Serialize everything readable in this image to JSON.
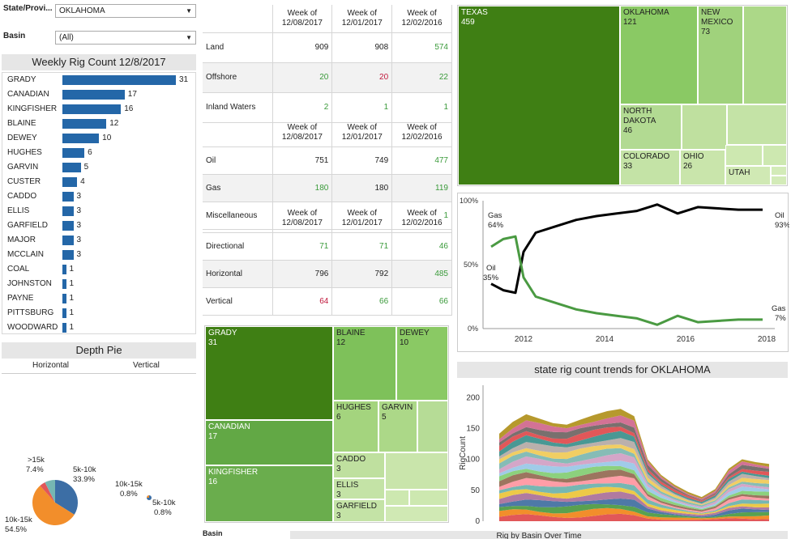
{
  "filters": {
    "state_label": "State/Provi...",
    "state_value": "OKLAHOMA",
    "basin_label": "Basin",
    "basin_value": "(All)"
  },
  "weekly": {
    "title": "Weekly Rig Count 12/8/2017",
    "items": [
      {
        "name": "GRADY",
        "value": 31
      },
      {
        "name": "CANADIAN",
        "value": 17
      },
      {
        "name": "KINGFISHER",
        "value": 16
      },
      {
        "name": "BLAINE",
        "value": 12
      },
      {
        "name": "DEWEY",
        "value": 10
      },
      {
        "name": "HUGHES",
        "value": 6
      },
      {
        "name": "GARVIN",
        "value": 5
      },
      {
        "name": "CUSTER",
        "value": 4
      },
      {
        "name": "CADDO",
        "value": 3
      },
      {
        "name": "ELLIS",
        "value": 3
      },
      {
        "name": "GARFIELD",
        "value": 3
      },
      {
        "name": "MAJOR",
        "value": 3
      },
      {
        "name": "MCCLAIN",
        "value": 3
      },
      {
        "name": "COAL",
        "value": 1
      },
      {
        "name": "JOHNSTON",
        "value": 1
      },
      {
        "name": "PAYNE",
        "value": 1
      },
      {
        "name": "PITTSBURG",
        "value": 1
      },
      {
        "name": "WOODWARD",
        "value": 1
      }
    ],
    "bar_color": "#2467a8"
  },
  "depth": {
    "title": "Depth Pie",
    "col1": "Horizontal",
    "col2": "Vertical",
    "pie1": [
      {
        "label": "5k-10k",
        "pct": "33.9%",
        "value": 33.9,
        "color": "#3c6ea5"
      },
      {
        "label": "10k-15k",
        "pct": "54.5%",
        "value": 54.5,
        "color": "#f28e2b"
      },
      {
        "label": "",
        "pct": "",
        "value": 4.2,
        "color": "#e15759"
      },
      {
        "label": ">15k",
        "pct": "7.4%",
        "value": 7.4,
        "color": "#76b7b2"
      }
    ],
    "pie2": [
      {
        "label": "10k-15k",
        "pct": "0.8%",
        "color": "#f28e2b"
      },
      {
        "label": "5k-10k",
        "pct": "0.8%",
        "color": "#3c6ea5"
      }
    ]
  },
  "tables": {
    "headers": [
      "Week of\n12/08/2017",
      "Week of\n12/01/2017",
      "Week of\n12/02/2016"
    ],
    "location": [
      {
        "name": "Land",
        "v": [
          "909",
          "908",
          "574"
        ],
        "c": [
          "dark",
          "dark",
          "green1"
        ]
      },
      {
        "name": "Offshore",
        "v": [
          "20",
          "20",
          "22"
        ],
        "c": [
          "green1",
          "red1",
          "green1"
        ]
      },
      {
        "name": "Inland Waters",
        "v": [
          "2",
          "1",
          "1"
        ],
        "c": [
          "green1",
          "green1",
          "green1"
        ]
      }
    ],
    "type": [
      {
        "name": "Oil",
        "v": [
          "751",
          "749",
          "477"
        ],
        "c": [
          "dark",
          "dark",
          "green1"
        ]
      },
      {
        "name": "Gas",
        "v": [
          "180",
          "180",
          "119"
        ],
        "c": [
          "green1",
          "dark",
          "green1"
        ]
      },
      {
        "name": "Miscellaneous",
        "v": [
          "",
          "",
          "1"
        ],
        "c": [
          "dark",
          "dark",
          "green1"
        ]
      }
    ],
    "trajectory": [
      {
        "name": "Directional",
        "v": [
          "71",
          "71",
          "46"
        ],
        "c": [
          "green1",
          "green1",
          "green1"
        ]
      },
      {
        "name": "Horizontal",
        "v": [
          "796",
          "792",
          "485"
        ],
        "c": [
          "dark",
          "dark",
          "green1"
        ]
      },
      {
        "name": "Vertical",
        "v": [
          "64",
          "66",
          "66"
        ],
        "c": [
          "red1",
          "green1",
          "green1"
        ]
      }
    ]
  },
  "county_tree": [
    {
      "name": "GRADY",
      "value": "31"
    },
    {
      "name": "BLAINE",
      "value": "12"
    },
    {
      "name": "DEWEY",
      "value": "10"
    },
    {
      "name": "CANADIAN",
      "value": "17"
    },
    {
      "name": "HUGHES",
      "value": "6"
    },
    {
      "name": "GARVIN",
      "value": "5"
    },
    {
      "name": "KINGFISHER",
      "value": "16"
    },
    {
      "name": "CADDO",
      "value": "3"
    },
    {
      "name": "ELLIS",
      "value": "3"
    },
    {
      "name": "GARFIELD",
      "value": "3"
    }
  ],
  "state_tree": [
    {
      "name": "TEXAS",
      "value": "459"
    },
    {
      "name": "OKLAHOMA",
      "value": "121"
    },
    {
      "name": "NEW\nMEXICO",
      "value": "73"
    },
    {
      "name": "NORTH\nDAKOTA",
      "value": "46"
    },
    {
      "name": "COLORADO",
      "value": "33"
    },
    {
      "name": "OHIO",
      "value": "26"
    },
    {
      "name": "UTAH",
      "value": ""
    }
  ],
  "chart_data": [
    {
      "type": "line",
      "x_ticks": [
        "2012",
        "2014",
        "2016",
        "2018"
      ],
      "y_ticks": [
        "100%",
        "50%",
        "0%"
      ],
      "series": [
        {
          "name": "Oil",
          "color": "#000000",
          "end_label": "93%",
          "start_label": "35%",
          "x": [
            2011.2,
            2011.5,
            2011.8,
            2012.0,
            2012.3,
            2012.8,
            2013.3,
            2013.8,
            2014.3,
            2014.8,
            2015.3,
            2015.8,
            2016.3,
            2016.8,
            2017.3,
            2017.9
          ],
          "y": [
            35,
            30,
            28,
            60,
            75,
            80,
            85,
            88,
            90,
            92,
            97,
            90,
            95,
            94,
            93,
            93
          ]
        },
        {
          "name": "Gas",
          "color": "#4a9a42",
          "end_label": "7%",
          "start_label": "64%",
          "x": [
            2011.2,
            2011.5,
            2011.8,
            2012.0,
            2012.3,
            2012.8,
            2013.3,
            2013.8,
            2014.3,
            2014.8,
            2015.3,
            2015.8,
            2016.3,
            2016.8,
            2017.3,
            2017.9
          ],
          "y": [
            64,
            70,
            72,
            40,
            25,
            20,
            15,
            12,
            10,
            8,
            3,
            10,
            5,
            6,
            7,
            7
          ]
        }
      ],
      "ylim": [
        0,
        100
      ]
    },
    {
      "type": "area",
      "title": "state rig count trends for OKLAHOMA",
      "ylabel": "RigCount",
      "y_ticks": [
        0,
        50,
        100,
        150,
        200
      ],
      "ylim": [
        0,
        220
      ],
      "x": [
        0,
        1,
        2,
        3,
        4,
        5,
        6,
        7,
        8,
        9,
        10,
        11,
        12,
        13,
        14,
        15,
        16,
        17,
        18,
        19,
        20
      ],
      "total": [
        165,
        185,
        200,
        195,
        190,
        188,
        195,
        200,
        205,
        210,
        200,
        120,
        90,
        70,
        55,
        45,
        60,
        100,
        120,
        115,
        110
      ]
    }
  ],
  "bottom": {
    "basin_partial": "Basin",
    "title_partial": "Rig by Basin Over Time"
  }
}
